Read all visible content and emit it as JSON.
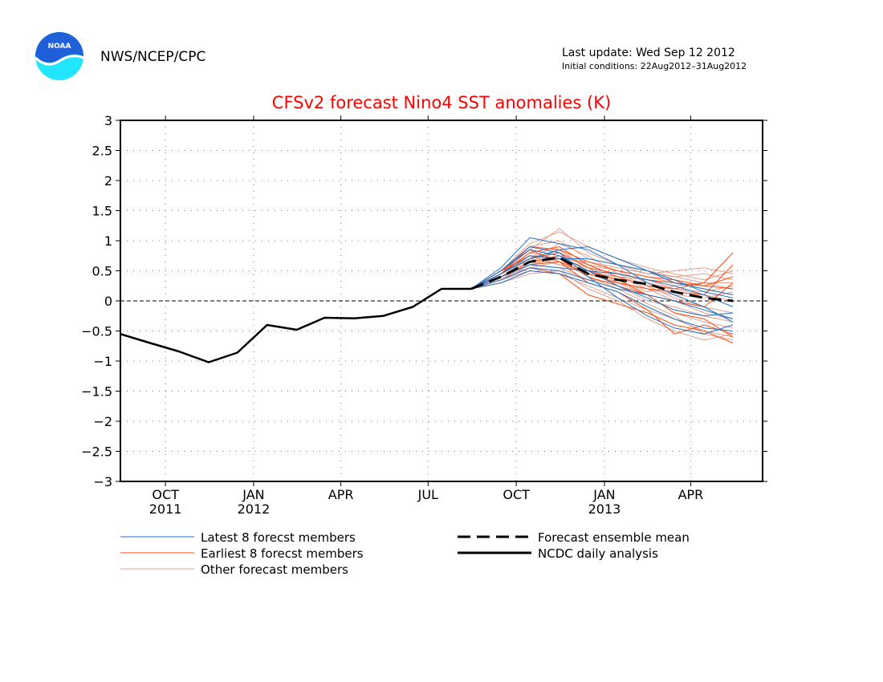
{
  "header": {
    "org": "NWS/NCEP/CPC",
    "logo_text": "NOAA",
    "last_update": "Last update: Wed Sep 12 2012",
    "initial_conditions": "Initial conditions: 22Aug2012–31Aug2012"
  },
  "colors": {
    "title": "#ff0000",
    "latest": "#1f6fc4",
    "earliest": "#ff4a0f",
    "other": "#e0a090",
    "ensemble_mean": "#000000",
    "analysis": "#000000",
    "logo_top": "#1f5fd8",
    "logo_bottom": "#22e6ff"
  },
  "chart_data": {
    "type": "line",
    "title": "CFSv2 forecast Nino4 SST anomalies (K)",
    "xlabel": "",
    "ylabel": "",
    "ylim": [
      -3,
      3
    ],
    "y_ticks": [
      {
        "value": 3,
        "label": "3"
      },
      {
        "value": 2.5,
        "label": "2.5"
      },
      {
        "value": 2,
        "label": "2"
      },
      {
        "value": 1.5,
        "label": "1.5"
      },
      {
        "value": 1,
        "label": "1"
      },
      {
        "value": 0.5,
        "label": "0.5"
      },
      {
        "value": 0,
        "label": "0"
      },
      {
        "value": -0.5,
        "label": "−0.5"
      },
      {
        "value": -1,
        "label": "−1"
      },
      {
        "value": -1.5,
        "label": "−1.5"
      },
      {
        "value": -2,
        "label": "−2"
      },
      {
        "value": -2.5,
        "label": "−2.5"
      },
      {
        "value": -3,
        "label": "−3"
      }
    ],
    "x_range": [
      "2011-08-15",
      "2013-06-15"
    ],
    "x_ticks": [
      {
        "date": "2011-10-01",
        "label": "OCT",
        "year": "2011"
      },
      {
        "date": "2012-01-01",
        "label": "JAN",
        "year": "2012"
      },
      {
        "date": "2012-04-01",
        "label": "APR",
        "year": ""
      },
      {
        "date": "2012-07-01",
        "label": "JUL",
        "year": ""
      },
      {
        "date": "2012-10-01",
        "label": "OCT",
        "year": ""
      },
      {
        "date": "2013-01-01",
        "label": "JAN",
        "year": "2013"
      },
      {
        "date": "2013-04-01",
        "label": "APR",
        "year": ""
      }
    ],
    "grid": true,
    "zero_line": true,
    "legend": {
      "placement": "bottom",
      "items": [
        {
          "key": "latest",
          "label": "Latest 8 forecst members"
        },
        {
          "key": "earliest",
          "label": "Earliest 8 forecst members"
        },
        {
          "key": "other",
          "label": "Other forecast members"
        },
        {
          "key": "mean",
          "label": "Forecast ensemble mean"
        },
        {
          "key": "analysis",
          "label": "NCDC daily analysis"
        }
      ]
    },
    "forecast_dates": [
      "2012-08-15",
      "2012-09-15",
      "2012-10-15",
      "2012-11-15",
      "2012-12-15",
      "2013-01-15",
      "2013-02-15",
      "2013-03-15",
      "2013-04-15",
      "2013-05-15"
    ],
    "analysis": {
      "name": "NCDC daily analysis",
      "x": [
        "2011-08-15",
        "2011-09-15",
        "2011-10-15",
        "2011-11-15",
        "2011-12-15",
        "2012-01-15",
        "2012-02-15",
        "2012-03-15",
        "2012-04-15",
        "2012-05-15",
        "2012-06-15",
        "2012-07-15",
        "2012-08-15"
      ],
      "y": [
        -0.55,
        -0.7,
        -0.84,
        -1.02,
        -0.86,
        -0.4,
        -0.48,
        -0.28,
        -0.29,
        -0.25,
        -0.1,
        0.2,
        0.2
      ]
    },
    "ensemble_mean": {
      "name": "Forecast ensemble mean",
      "y": [
        0.2,
        0.4,
        0.65,
        0.72,
        0.45,
        0.35,
        0.28,
        0.15,
        0.05,
        0.0
      ]
    },
    "latest_members": [
      [
        0.2,
        0.55,
        1.05,
        0.95,
        0.85,
        0.6,
        0.3,
        0.1,
        -0.1,
        -0.35
      ],
      [
        0.2,
        0.5,
        0.9,
        0.8,
        0.4,
        0.05,
        -0.25,
        -0.45,
        -0.55,
        -0.4
      ],
      [
        0.2,
        0.45,
        0.75,
        0.7,
        0.7,
        0.6,
        0.5,
        0.3,
        0.2,
        0.1
      ],
      [
        0.2,
        0.4,
        0.6,
        0.55,
        0.5,
        0.45,
        0.35,
        0.25,
        0.1,
        -0.1
      ],
      [
        0.2,
        0.35,
        0.55,
        0.5,
        0.35,
        0.2,
        0.1,
        0.0,
        -0.15,
        -0.3
      ],
      [
        0.2,
        0.5,
        0.85,
        0.75,
        0.5,
        0.25,
        0.05,
        -0.15,
        -0.25,
        -0.2
      ],
      [
        0.2,
        0.45,
        0.7,
        0.85,
        0.9,
        0.7,
        0.5,
        0.35,
        0.15,
        0.05
      ],
      [
        0.2,
        0.3,
        0.5,
        0.45,
        0.3,
        0.15,
        -0.1,
        -0.3,
        -0.45,
        -0.5
      ]
    ],
    "earliest_members": [
      [
        0.2,
        0.45,
        0.8,
        0.9,
        0.6,
        0.4,
        0.25,
        0.2,
        0.3,
        0.8
      ],
      [
        0.2,
        0.5,
        0.85,
        0.65,
        0.45,
        0.3,
        0.2,
        0.15,
        0.1,
        0.6
      ],
      [
        0.2,
        0.4,
        0.65,
        0.75,
        0.5,
        0.35,
        0.1,
        -0.2,
        -0.3,
        -0.6
      ],
      [
        0.2,
        0.35,
        0.55,
        0.45,
        0.1,
        -0.05,
        -0.2,
        -0.4,
        -0.5,
        -0.7
      ],
      [
        0.2,
        0.45,
        0.7,
        0.8,
        0.55,
        0.45,
        0.35,
        0.3,
        0.25,
        0.2
      ],
      [
        0.2,
        0.5,
        0.75,
        0.7,
        0.4,
        0.25,
        0.1,
        0.0,
        -0.1,
        0.3
      ],
      [
        0.2,
        0.4,
        0.6,
        0.65,
        0.3,
        0.15,
        -0.15,
        -0.55,
        -0.4,
        -0.55
      ],
      [
        0.2,
        0.45,
        0.9,
        0.85,
        0.65,
        0.5,
        0.4,
        0.35,
        0.25,
        0.4
      ]
    ],
    "other_members": [
      [
        0.2,
        0.4,
        0.7,
        0.6,
        0.5,
        0.4,
        0.2,
        0.0,
        -0.2,
        -0.3
      ],
      [
        0.2,
        0.45,
        0.85,
        1.2,
        0.8,
        0.6,
        0.5,
        0.4,
        0.3,
        0.3
      ],
      [
        0.2,
        0.5,
        0.95,
        1.15,
        0.9,
        0.7,
        0.55,
        0.45,
        0.35,
        0.5
      ],
      [
        0.2,
        0.35,
        0.5,
        0.45,
        0.25,
        0.05,
        -0.15,
        -0.3,
        -0.5,
        -0.6
      ],
      [
        0.2,
        0.4,
        0.6,
        0.75,
        0.6,
        0.5,
        0.4,
        0.3,
        0.2,
        0.1
      ],
      [
        0.2,
        0.3,
        0.45,
        0.5,
        0.2,
        0.0,
        -0.3,
        -0.5,
        -0.65,
        -0.55
      ],
      [
        0.2,
        0.45,
        0.8,
        0.7,
        0.65,
        0.55,
        0.45,
        0.4,
        0.45,
        0.35
      ],
      [
        0.2,
        0.5,
        0.7,
        0.95,
        0.75,
        0.45,
        0.25,
        0.05,
        -0.1,
        -0.2
      ],
      [
        0.2,
        0.35,
        0.6,
        0.55,
        0.35,
        0.3,
        0.2,
        0.1,
        0.05,
        0.15
      ],
      [
        0.2,
        0.4,
        0.65,
        0.85,
        0.55,
        0.3,
        0.1,
        -0.2,
        -0.35,
        -0.45
      ],
      [
        0.2,
        0.45,
        0.75,
        0.6,
        0.45,
        0.4,
        0.35,
        0.2,
        0.1,
        0.0
      ],
      [
        0.2,
        0.4,
        0.55,
        0.65,
        0.5,
        0.35,
        0.15,
        0.25,
        0.3,
        0.2
      ],
      [
        0.2,
        0.5,
        0.9,
        1.0,
        0.7,
        0.6,
        0.45,
        0.5,
        0.55,
        0.45
      ],
      [
        0.2,
        0.35,
        0.65,
        0.7,
        0.4,
        0.2,
        -0.05,
        -0.25,
        -0.55,
        -0.65
      ],
      [
        0.2,
        0.45,
        0.7,
        0.8,
        0.6,
        0.5,
        0.3,
        0.2,
        0.15,
        0.25
      ],
      [
        0.2,
        0.4,
        0.6,
        0.7,
        0.55,
        0.25,
        0.0,
        -0.1,
        -0.25,
        -0.35
      ]
    ]
  }
}
